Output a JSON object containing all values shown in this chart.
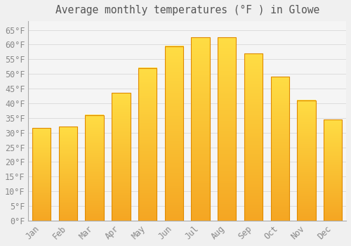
{
  "title": "Average monthly temperatures (°F ) in Glowe",
  "months": [
    "Jan",
    "Feb",
    "Mar",
    "Apr",
    "May",
    "Jun",
    "Jul",
    "Aug",
    "Sep",
    "Oct",
    "Nov",
    "Dec"
  ],
  "values": [
    31.5,
    32.0,
    36.0,
    43.5,
    52.0,
    59.5,
    62.5,
    62.5,
    57.0,
    49.0,
    41.0,
    34.5
  ],
  "bar_color_top": "#FFDD44",
  "bar_color_bottom": "#F5A623",
  "bar_edge_color": "#E08A00",
  "background_color": "#F0F0F0",
  "plot_bg_color": "#F5F5F5",
  "grid_color": "#DDDDDD",
  "text_color": "#888888",
  "title_color": "#555555",
  "ylim": [
    0,
    68
  ],
  "yticks": [
    0,
    5,
    10,
    15,
    20,
    25,
    30,
    35,
    40,
    45,
    50,
    55,
    60,
    65
  ],
  "title_fontsize": 10.5,
  "tick_fontsize": 8.5,
  "bar_width": 0.7
}
